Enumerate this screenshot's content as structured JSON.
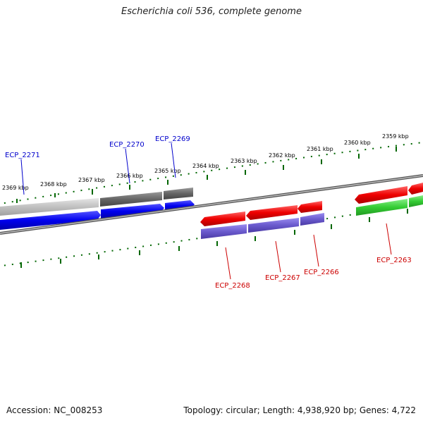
{
  "title": "Escherichia coli 536, complete genome",
  "footer": {
    "accession": "Accession: NC_008253",
    "summary": "Topology: circular; Length: 4,938,920 bp; Genes: 4,722"
  },
  "scale_labels": [
    "2369 kbp",
    "2368 kbp",
    "2367 kbp",
    "2366 kbp",
    "2365 kbp",
    "2364 kbp",
    "2363 kbp",
    "2362 kbp",
    "2361 kbp",
    "2360 kbp",
    "2359 kbp"
  ],
  "genes": [
    {
      "label": "ECP_2271",
      "strand": "forward",
      "label_color": "#0000cc"
    },
    {
      "label": "ECP_2270",
      "strand": "forward",
      "label_color": "#0000cc"
    },
    {
      "label": "ECP_2269",
      "strand": "forward",
      "label_color": "#0000cc"
    },
    {
      "label": "ECP_2268",
      "strand": "reverse",
      "label_color": "#cc0000"
    },
    {
      "label": "ECP_2267",
      "strand": "reverse",
      "label_color": "#cc0000"
    },
    {
      "label": "ECP_2266",
      "strand": "reverse",
      "label_color": "#cc0000"
    },
    {
      "label": "ECP_2263",
      "strand": "reverse",
      "label_color": "#cc0000"
    }
  ],
  "colors": {
    "forward_cds": "#0000ee",
    "reverse_cds": "#ee0000",
    "forward_orf_light": "#c0c0c0",
    "forward_orf_dark": "#666666",
    "reverse_orf_purple": "#6a5acd",
    "reverse_orf_green": "#33cc33",
    "backbone": "#808080",
    "ticks": "#006600"
  }
}
